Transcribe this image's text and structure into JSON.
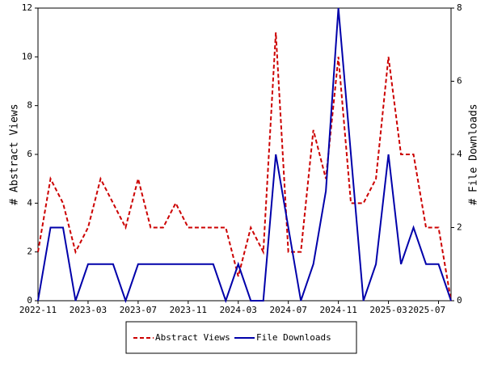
{
  "chart_data": {
    "type": "line",
    "x": [
      "2022-11",
      "2022-12",
      "2023-01",
      "2023-02",
      "2023-03",
      "2023-04",
      "2023-05",
      "2023-06",
      "2023-07",
      "2023-08",
      "2023-09",
      "2023-10",
      "2023-11",
      "2023-12",
      "2024-01",
      "2024-02",
      "2024-03",
      "2024-04",
      "2024-05",
      "2024-06",
      "2024-07",
      "2024-08",
      "2024-09",
      "2024-10",
      "2024-11",
      "2024-12",
      "2025-01",
      "2025-02",
      "2025-03",
      "2025-04",
      "2025-05",
      "2025-06",
      "2025-07",
      "2025-08"
    ],
    "xticks": [
      "2022-11",
      "2023-03",
      "2023-07",
      "2023-11",
      "2024-03",
      "2024-07",
      "2024-11",
      "2025-03",
      "2025-07"
    ],
    "ylabel": "# Abstract Views",
    "y2label": "# File Downloads",
    "ylim": [
      0,
      12
    ],
    "yticks": [
      0,
      2,
      4,
      6,
      8,
      10,
      12
    ],
    "y2lim": [
      0,
      8
    ],
    "y2ticks": [
      0,
      2,
      4,
      6,
      8
    ],
    "legend": "bottom",
    "series": [
      {
        "name": "Abstract Views",
        "color": "#cc0000",
        "dash": true,
        "values": [
          2,
          5,
          4,
          2,
          3,
          5,
          4,
          3,
          5,
          3,
          3,
          4,
          3,
          3,
          3,
          3,
          1,
          3,
          2,
          11,
          2,
          2,
          7,
          5,
          10,
          4,
          4,
          5,
          10,
          6,
          6,
          3,
          3,
          0
        ]
      },
      {
        "name": "File Downloads",
        "color": "#0000aa",
        "axis": "y2",
        "values": [
          0,
          2,
          2,
          0,
          1,
          1,
          1,
          0,
          1,
          1,
          1,
          1,
          1,
          1,
          1,
          0,
          1,
          0,
          0,
          4,
          2,
          0,
          1,
          3,
          8,
          4,
          0,
          1,
          4,
          1,
          2,
          1,
          1,
          0
        ]
      }
    ]
  }
}
